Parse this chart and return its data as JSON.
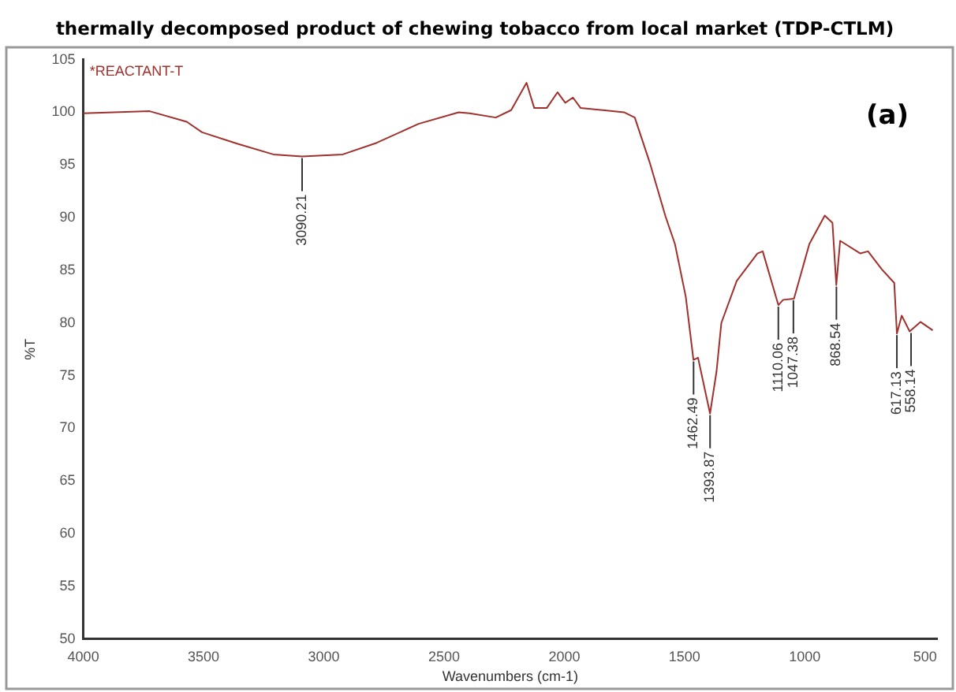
{
  "chart_data": {
    "type": "line",
    "title": "thermally decomposed product of chewing tobacco from local market (TDP-CTLM)",
    "xlabel": "Wavenumbers (cm-1)",
    "ylabel": "%T",
    "x": [
      4000,
      3724,
      3570,
      3506,
      3358,
      3210,
      3090,
      2921,
      2780,
      2606,
      2439,
      2394,
      2285,
      2221,
      2157,
      2125,
      2073,
      2028,
      1996,
      1964,
      1932,
      1752,
      1707,
      1643,
      1579,
      1540,
      1495,
      1463,
      1444,
      1394,
      1367,
      1347,
      1283,
      1197,
      1175,
      1110,
      1090,
      1045,
      981,
      917,
      885,
      869,
      853,
      769,
      737,
      680,
      628,
      617,
      597,
      564,
      519,
      468
    ],
    "series": [
      {
        "color": "#a0302c",
        "values": [
          99.9,
          100.1,
          99.1,
          98.1,
          97.0,
          96.0,
          95.8,
          96.0,
          97.1,
          98.9,
          100.0,
          99.9,
          99.5,
          100.2,
          102.8,
          100.4,
          100.4,
          101.9,
          100.9,
          101.4,
          100.4,
          100.0,
          99.5,
          95.1,
          90.1,
          87.5,
          82.5,
          76.5,
          76.7,
          71.4,
          75.4,
          80.0,
          84.0,
          86.6,
          86.8,
          81.7,
          82.2,
          82.3,
          87.5,
          90.2,
          89.5,
          83.6,
          87.8,
          86.6,
          86.8,
          85.1,
          83.8,
          79.0,
          80.7,
          79.2,
          80.1,
          79.3
        ]
      }
    ],
    "xlim": [
      4000,
      450
    ],
    "xticks": [
      4000,
      3500,
      3000,
      2500,
      2000,
      1500,
      1000,
      500
    ],
    "ylim": [
      50,
      105
    ],
    "yticks": [
      50,
      55,
      60,
      65,
      70,
      75,
      80,
      85,
      90,
      95,
      100,
      105
    ],
    "grid": false,
    "legend": false,
    "marker": "none",
    "line_style": "solid",
    "annotations": [
      "*REACTANT-T",
      "(a)",
      {
        "text": "3090.21",
        "x": 3090.21,
        "y": 95.8
      },
      {
        "text": "1462.49",
        "x": 1462.49,
        "y": 76.5
      },
      {
        "text": "1393.87",
        "x": 1393.87,
        "y": 71.4
      },
      {
        "text": "1110.06",
        "x": 1110.06,
        "y": 81.7
      },
      {
        "text": "1047.38",
        "x": 1047.38,
        "y": 82.3
      },
      {
        "text": "868.54",
        "x": 868.54,
        "y": 83.6
      },
      {
        "text": "617.13",
        "x": 617.13,
        "y": 79.0
      },
      {
        "text": "558.14",
        "x": 558.14,
        "y": 79.2
      }
    ]
  }
}
